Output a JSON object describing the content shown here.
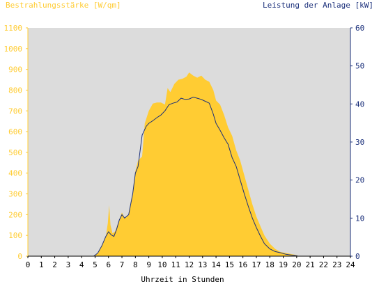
{
  "chart_data": {
    "type": "area",
    "title_left": "Bestrahlungsstärke [W/qm]",
    "title_right": "Leistung der Anlage [kW]",
    "xlabel": "Uhrzeit in Stunden",
    "xlim": [
      0,
      24
    ],
    "ylim_left": [
      0,
      1100
    ],
    "ylim_right": [
      0,
      60
    ],
    "x_ticks": [
      "0",
      "1",
      "2",
      "3",
      "4",
      "5",
      "6",
      "7",
      "8",
      "9",
      "10",
      "11",
      "12",
      "13",
      "14",
      "15",
      "16",
      "17",
      "18",
      "19",
      "20",
      "21",
      "22",
      "23",
      "24"
    ],
    "y_left_ticks": [
      "0",
      "100",
      "200",
      "300",
      "400",
      "500",
      "600",
      "700",
      "800",
      "900",
      "1000",
      "1100"
    ],
    "y_right_ticks": [
      "0",
      "10",
      "20",
      "30",
      "40",
      "50",
      "60"
    ],
    "colors": {
      "irradiance": "#ffcc33",
      "power": "#1a2f7a",
      "plot_bg": "#dcdcdc"
    },
    "series": [
      {
        "key": "irradiance",
        "axis": "left",
        "style": "area",
        "x": [
          0,
          4.9,
          5.2,
          5.5,
          5.8,
          5.95,
          6.05,
          6.15,
          6.3,
          6.5,
          6.8,
          7.0,
          7.2,
          7.5,
          7.8,
          8.0,
          8.2,
          8.5,
          8.7,
          9.0,
          9.3,
          9.6,
          9.9,
          10.2,
          10.4,
          10.6,
          10.9,
          11.2,
          11.5,
          11.8,
          12.0,
          12.3,
          12.6,
          12.9,
          13.2,
          13.5,
          13.8,
          14.0,
          14.3,
          14.6,
          14.9,
          15.2,
          15.5,
          15.8,
          16.1,
          16.4,
          16.7,
          17.0,
          17.3,
          17.6,
          18.0,
          18.4,
          18.8,
          19.2,
          19.6,
          20.0,
          20.1,
          24
        ],
        "y": [
          0,
          0,
          15,
          50,
          95,
          160,
          245,
          150,
          110,
          120,
          175,
          210,
          185,
          200,
          300,
          410,
          460,
          480,
          640,
          700,
          735,
          740,
          740,
          730,
          810,
          790,
          830,
          850,
          855,
          865,
          885,
          870,
          860,
          870,
          850,
          840,
          800,
          750,
          730,
          680,
          620,
          580,
          510,
          460,
          390,
          320,
          250,
          190,
          145,
          100,
          60,
          35,
          20,
          15,
          10,
          5,
          0,
          0
        ]
      },
      {
        "key": "power",
        "axis": "right",
        "style": "line",
        "x": [
          0,
          4.9,
          5.2,
          5.5,
          5.8,
          6.0,
          6.2,
          6.4,
          6.6,
          6.8,
          7.0,
          7.2,
          7.5,
          7.8,
          8.0,
          8.2,
          8.5,
          8.8,
          9.0,
          9.3,
          9.6,
          9.9,
          10.2,
          10.5,
          10.8,
          11.1,
          11.4,
          11.7,
          12.0,
          12.3,
          12.6,
          12.9,
          13.2,
          13.5,
          13.8,
          14.0,
          14.3,
          14.6,
          14.9,
          15.2,
          15.5,
          15.8,
          16.1,
          16.4,
          16.7,
          17.0,
          17.3,
          17.6,
          18.0,
          18.4,
          18.8,
          19.2,
          19.6,
          20.0,
          20.1,
          24
        ],
        "y": [
          0,
          0,
          0.8,
          2.7,
          5.2,
          6.4,
          5.6,
          5.2,
          7.0,
          9.5,
          10.9,
          10.0,
          10.9,
          16.4,
          21.8,
          23.6,
          31.8,
          34.1,
          34.9,
          35.6,
          36.4,
          37.1,
          38.2,
          39.8,
          40.2,
          40.5,
          41.5,
          41.2,
          41.3,
          41.8,
          41.5,
          41.2,
          40.7,
          40.2,
          37.3,
          34.9,
          33.1,
          31.1,
          29.4,
          25.9,
          23.6,
          20.0,
          16.4,
          13.1,
          10.0,
          7.5,
          5.3,
          3.3,
          1.9,
          1.2,
          0.9,
          0.5,
          0.3,
          0.1,
          0,
          0
        ]
      }
    ]
  }
}
